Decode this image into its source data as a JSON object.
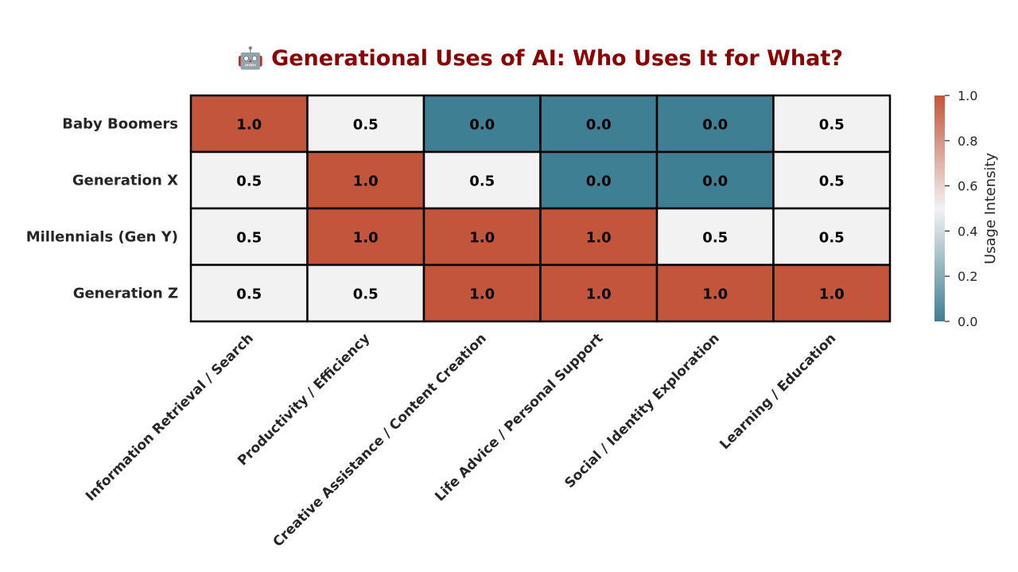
{
  "colors": {
    "low": "#3f7f93",
    "mid": "#f2f2f2",
    "high": "#c3553a",
    "title": "#8b0000",
    "grid_line": "#000000"
  },
  "chart_data": {
    "type": "heatmap",
    "title": "🤖 Generational Uses of AI: Who Uses It for What?",
    "rows": [
      "Baby Boomers",
      "Generation X",
      "Millennials (Gen Y)",
      "Generation Z"
    ],
    "columns": [
      "Information Retrieval / Search",
      "Productivity / Efficiency",
      "Creative Assistance / Content Creation",
      "Life Advice / Personal Support",
      "Social / Identity Exploration",
      "Learning / Education"
    ],
    "values": [
      [
        1.0,
        0.5,
        0.0,
        0.0,
        0.0,
        0.5
      ],
      [
        0.5,
        1.0,
        0.5,
        0.0,
        0.0,
        0.5
      ],
      [
        0.5,
        1.0,
        1.0,
        1.0,
        0.5,
        0.5
      ],
      [
        0.5,
        0.5,
        1.0,
        1.0,
        1.0,
        1.0
      ]
    ],
    "value_format": "0.0",
    "colorbar": {
      "label": "Usage Intensity",
      "range": [
        0.0,
        1.0
      ],
      "ticks": [
        "0.0",
        "0.2",
        "0.4",
        "0.6",
        "0.8",
        "1.0"
      ],
      "tick_values": [
        0.0,
        0.2,
        0.4,
        0.6,
        0.8,
        1.0
      ]
    }
  }
}
